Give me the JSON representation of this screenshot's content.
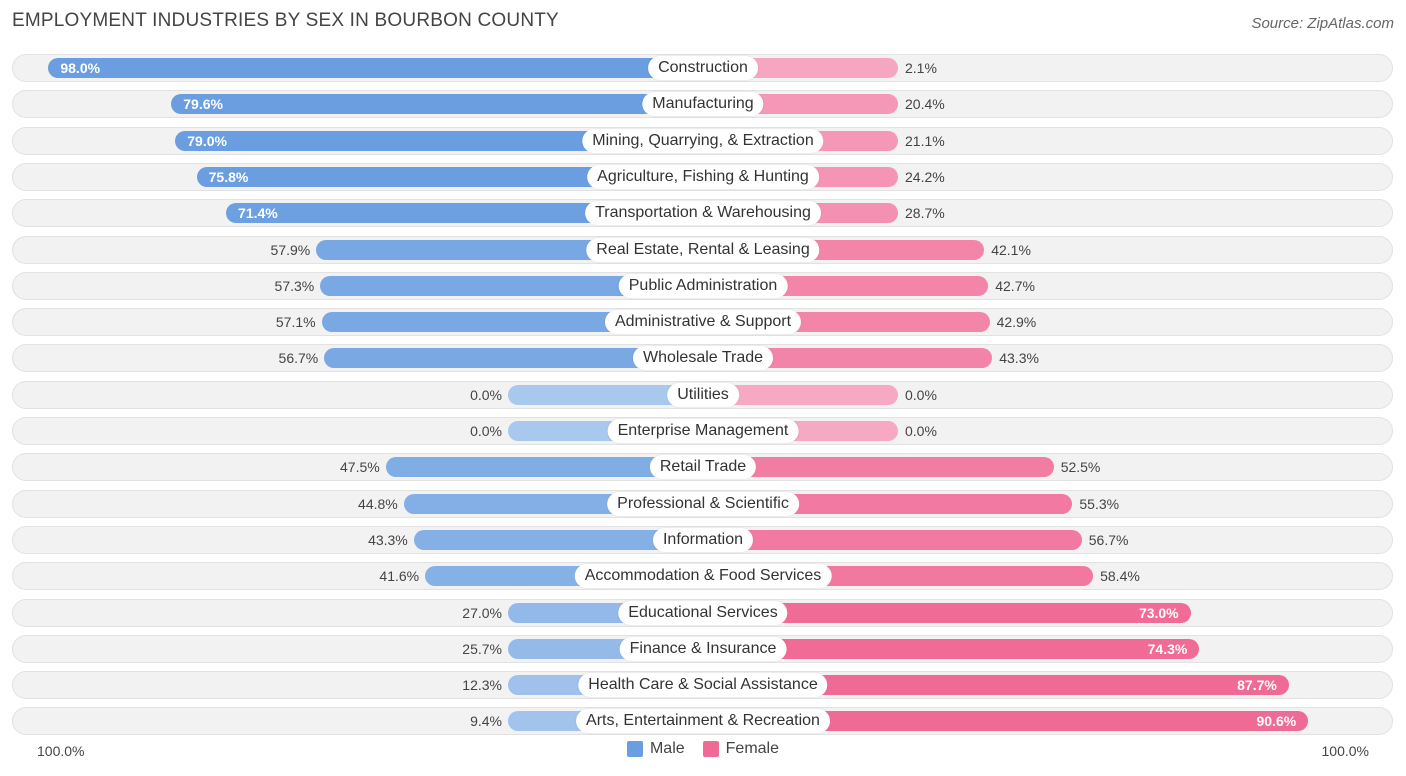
{
  "title": "EMPLOYMENT INDUSTRIES BY SEX IN BOURBON COUNTY",
  "source": "Source: ZipAtlas.com",
  "colors": {
    "male_strong": "#6a9ee0",
    "male_light": "#a9c8ee",
    "female_strong": "#f06a96",
    "female_light": "#f7a8c2"
  },
  "chart_data": {
    "type": "bar",
    "orientation": "horizontal-diverging",
    "title": "EMPLOYMENT INDUSTRIES BY SEX IN BOURBON COUNTY",
    "categories": [
      "Construction",
      "Manufacturing",
      "Mining, Quarrying, & Extraction",
      "Agriculture, Fishing & Hunting",
      "Transportation & Warehousing",
      "Real Estate, Rental & Leasing",
      "Public Administration",
      "Administrative & Support",
      "Wholesale Trade",
      "Utilities",
      "Enterprise Management",
      "Retail Trade",
      "Professional & Scientific",
      "Information",
      "Accommodation & Food Services",
      "Educational Services",
      "Finance & Insurance",
      "Health Care & Social Assistance",
      "Arts, Entertainment & Recreation"
    ],
    "series": [
      {
        "name": "Male",
        "values": [
          98.0,
          79.6,
          79.0,
          75.8,
          71.4,
          57.9,
          57.3,
          57.1,
          56.7,
          0.0,
          0.0,
          47.5,
          44.8,
          43.3,
          41.6,
          27.0,
          25.7,
          12.3,
          9.4
        ],
        "labels": [
          "98.0%",
          "79.6%",
          "79.0%",
          "75.8%",
          "71.4%",
          "57.9%",
          "57.3%",
          "57.1%",
          "56.7%",
          "0.0%",
          "0.0%",
          "47.5%",
          "44.8%",
          "43.3%",
          "41.6%",
          "27.0%",
          "25.7%",
          "12.3%",
          "9.4%"
        ]
      },
      {
        "name": "Female",
        "values": [
          2.1,
          20.4,
          21.1,
          24.2,
          28.7,
          42.1,
          42.7,
          42.9,
          43.3,
          0.0,
          0.0,
          52.5,
          55.3,
          56.7,
          58.4,
          73.0,
          74.3,
          87.7,
          90.6
        ],
        "labels": [
          "2.1%",
          "20.4%",
          "21.1%",
          "24.2%",
          "28.7%",
          "42.1%",
          "42.7%",
          "42.9%",
          "43.3%",
          "0.0%",
          "0.0%",
          "52.5%",
          "55.3%",
          "56.7%",
          "58.4%",
          "73.0%",
          "74.3%",
          "87.7%",
          "90.6%"
        ]
      }
    ],
    "xlim": [
      -100,
      100
    ],
    "axis_left_label": "100.0%",
    "axis_right_label": "100.0%",
    "legend": [
      "Male",
      "Female"
    ],
    "legend_position": "bottom-center"
  }
}
